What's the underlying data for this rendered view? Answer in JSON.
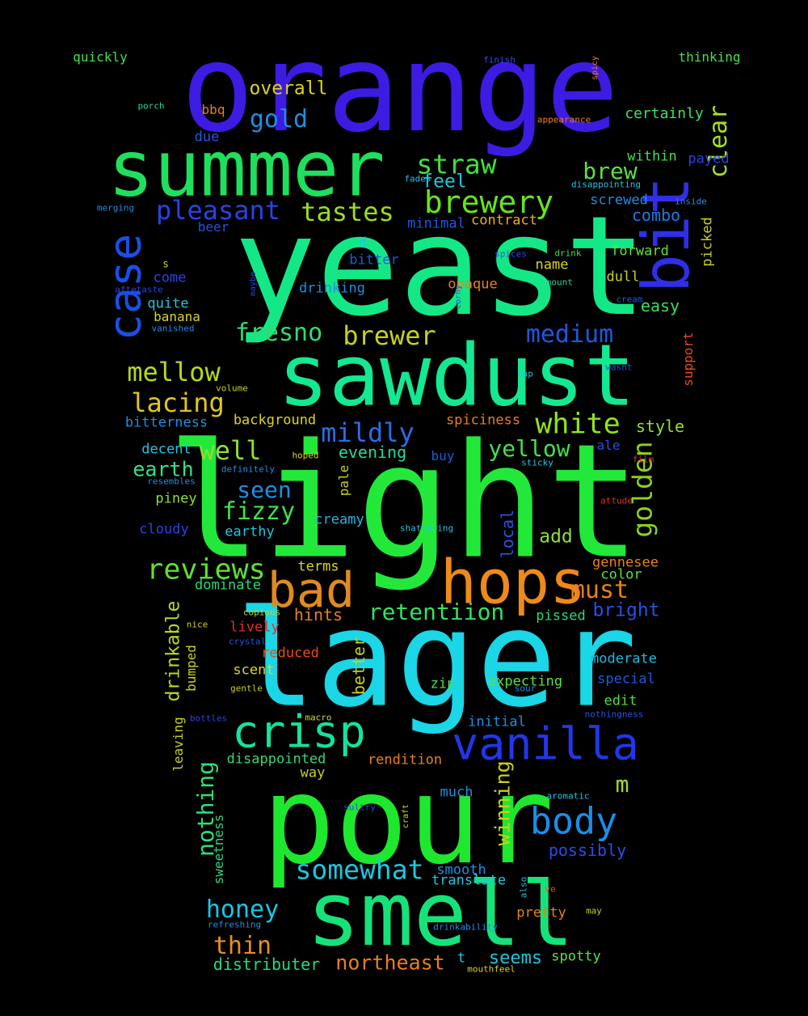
{
  "words": [
    {
      "text": "orange",
      "color": "#3d1be3"
    },
    {
      "text": "yeast",
      "color": "#14e886"
    },
    {
      "text": "light",
      "color": "#22e83a"
    },
    {
      "text": "lager",
      "color": "#1ad6e6"
    },
    {
      "text": "pour",
      "color": "#1ee82e"
    },
    {
      "text": "sawdust",
      "color": "#14e890"
    },
    {
      "text": "summer",
      "color": "#1ee05c"
    },
    {
      "text": "smell",
      "color": "#16e27a"
    },
    {
      "text": "hops",
      "color": "#ee8a1a"
    },
    {
      "text": "bit",
      "color": "#2f2ee8"
    },
    {
      "text": "vanilla",
      "color": "#2236ea"
    },
    {
      "text": "bad",
      "color": "#e08a22"
    },
    {
      "text": "crisp",
      "color": "#14e2a0"
    },
    {
      "text": "case",
      "color": "#1a4ee8"
    },
    {
      "text": "body",
      "color": "#1a8ee8"
    },
    {
      "text": "brewery",
      "color": "#66e41e"
    },
    {
      "text": "somewhat",
      "color": "#1ac8e0"
    },
    {
      "text": "reviews",
      "color": "#60e030"
    },
    {
      "text": "golden",
      "color": "#8ed01e"
    },
    {
      "text": "white",
      "color": "#90e41e"
    },
    {
      "text": "pleasant",
      "color": "#2a42e6"
    },
    {
      "text": "tastes",
      "color": "#9cdc20"
    },
    {
      "text": "straw",
      "color": "#40e040"
    },
    {
      "text": "mildly",
      "color": "#2a6ee4"
    },
    {
      "text": "fresno",
      "color": "#36d870"
    },
    {
      "text": "mellow",
      "color": "#b6d81e"
    },
    {
      "text": "brewer",
      "color": "#c8d01e"
    },
    {
      "text": "honey",
      "color": "#1ac4e8"
    },
    {
      "text": "thin",
      "color": "#e8901e"
    },
    {
      "text": "medium",
      "color": "#1e58e0"
    },
    {
      "text": "retentiion",
      "color": "#36e060"
    },
    {
      "text": "must",
      "color": "#e8801a"
    },
    {
      "text": "lacing",
      "color": "#e0c81e"
    },
    {
      "text": "nothing",
      "color": "#2ee07a"
    },
    {
      "text": "clear",
      "color": "#a6e020"
    },
    {
      "text": "winning",
      "color": "#c8d01e"
    },
    {
      "text": "fizzy",
      "color": "#44e048"
    },
    {
      "text": "seen",
      "color": "#1e8ee6"
    },
    {
      "text": "well",
      "color": "#8ee030"
    },
    {
      "text": "yellow",
      "color": "#44e04e"
    },
    {
      "text": "brew",
      "color": "#5ee040"
    },
    {
      "text": "gold",
      "color": "#1e8ee8"
    },
    {
      "text": "northeast",
      "color": "#e8801a"
    },
    {
      "text": "drinkable",
      "color": "#b6d81e"
    },
    {
      "text": "overall",
      "color": "#dcd41e"
    },
    {
      "text": "m",
      "color": "#a8dc20"
    },
    {
      "text": "earth",
      "color": "#36e08a"
    },
    {
      "text": "distributer",
      "color": "#26d87e"
    },
    {
      "text": "feel",
      "color": "#1ec6e0"
    },
    {
      "text": "combo",
      "color": "#1e7ae8"
    },
    {
      "text": "style",
      "color": "#8ee030"
    },
    {
      "text": "easy",
      "color": "#36e060"
    },
    {
      "text": "bright",
      "color": "#2a4ee8"
    },
    {
      "text": "evening",
      "color": "#26d8a0"
    },
    {
      "text": "seems",
      "color": "#1ec6e0"
    },
    {
      "text": "possibly",
      "color": "#2a4ee8"
    },
    {
      "text": "add",
      "color": "#90e030"
    },
    {
      "text": "local",
      "color": "#2a52e6"
    },
    {
      "text": "hints",
      "color": "#e8801a"
    },
    {
      "text": "better",
      "color": "#c8d01e"
    },
    {
      "text": "expecting",
      "color": "#60e040"
    },
    {
      "text": "special",
      "color": "#1e58e0"
    },
    {
      "text": "moderate",
      "color": "#1eb8e0"
    },
    {
      "text": "certainly",
      "color": "#40e060"
    },
    {
      "text": "thinking",
      "color": "#44e048"
    },
    {
      "text": "quickly",
      "color": "#44e048"
    },
    {
      "text": "spiciness",
      "color": "#e8801a"
    },
    {
      "text": "disappointed",
      "color": "#36d870"
    },
    {
      "text": "rendition",
      "color": "#e8801a"
    },
    {
      "text": "smooth",
      "color": "#1e8ee6"
    },
    {
      "text": "translate",
      "color": "#1ec6e0"
    },
    {
      "text": "pretty",
      "color": "#e8801a"
    },
    {
      "text": "spotty",
      "color": "#60e040"
    },
    {
      "text": "sweetness",
      "color": "#26d87e"
    },
    {
      "text": "leaving",
      "color": "#c8d01e"
    },
    {
      "text": "bumped",
      "color": "#c8d01e"
    },
    {
      "text": "background",
      "color": "#dcd41e"
    },
    {
      "text": "bitterness",
      "color": "#1e8ee6"
    },
    {
      "text": "decent",
      "color": "#1ec6e0"
    },
    {
      "text": "piney",
      "color": "#8ee030"
    },
    {
      "text": "cloudy",
      "color": "#2a42e6"
    },
    {
      "text": "earthy",
      "color": "#1ec6e0"
    },
    {
      "text": "creamy",
      "color": "#1eb8e0"
    },
    {
      "text": "terms",
      "color": "#dcd41e"
    },
    {
      "text": "dominate",
      "color": "#26d87e"
    },
    {
      "text": "lively",
      "color": "#e82a2a"
    },
    {
      "text": "reduced",
      "color": "#e84a1a"
    },
    {
      "text": "scent",
      "color": "#dcd41e"
    },
    {
      "text": "zip",
      "color": "#44e048"
    },
    {
      "text": "initial",
      "color": "#1e8ee6"
    },
    {
      "text": "edit",
      "color": "#44e048"
    },
    {
      "text": "color",
      "color": "#60e040"
    },
    {
      "text": "gennesee",
      "color": "#e8801a"
    },
    {
      "text": "pissed",
      "color": "#26d87e"
    },
    {
      "text": "way",
      "color": "#c8d01e"
    },
    {
      "text": "much",
      "color": "#1e8ee6"
    },
    {
      "text": "opaque",
      "color": "#e8801a"
    },
    {
      "text": "name",
      "color": "#dcd41e"
    },
    {
      "text": "dull",
      "color": "#c8d01e"
    },
    {
      "text": "forward",
      "color": "#60e040"
    },
    {
      "text": "picked",
      "color": "#c8d01e"
    },
    {
      "text": "contract",
      "color": "#e8b01e"
    },
    {
      "text": "minimal",
      "color": "#1e58e0"
    },
    {
      "text": "screwed",
      "color": "#1e8ee6"
    },
    {
      "text": "within",
      "color": "#44e048"
    },
    {
      "text": "payed",
      "color": "#2a42e6"
    },
    {
      "text": "bitter",
      "color": "#1e58e0"
    },
    {
      "text": "drinking",
      "color": "#1e8ee6"
    },
    {
      "text": "due",
      "color": "#1e58e0"
    },
    {
      "text": "bbq",
      "color": "#e8801a"
    },
    {
      "text": "beer",
      "color": "#1e58e0"
    },
    {
      "text": "come",
      "color": "#2a42e6"
    },
    {
      "text": "quite",
      "color": "#1ec6e0"
    },
    {
      "text": "banana",
      "color": "#dcd41e"
    },
    {
      "text": "s",
      "color": "#c8d01e"
    },
    {
      "text": "d",
      "color": "#1ec6e0"
    },
    {
      "text": "ale",
      "color": "#2a4ee8"
    },
    {
      "text": "buy",
      "color": "#1e58e0"
    },
    {
      "text": "pale",
      "color": "#c8d01e"
    },
    {
      "text": "support",
      "color": "#e84a1a"
    },
    {
      "text": "t",
      "color": "#1ec6e0"
    },
    {
      "text": "finish",
      "color": "#2a4ee8"
    },
    {
      "text": "spicy",
      "color": "#e8801a"
    },
    {
      "text": "porch",
      "color": "#26d8a0"
    },
    {
      "text": "appearance",
      "color": "#e8801a"
    },
    {
      "text": "fades",
      "color": "#1ec6e0"
    },
    {
      "text": "disappointing",
      "color": "#1ec6e0"
    },
    {
      "text": "inside",
      "color": "#1e8ee6"
    },
    {
      "text": "merging",
      "color": "#1e8ee6"
    },
    {
      "text": "spices",
      "color": "#2a4ee8"
    },
    {
      "text": "drink",
      "color": "#44e048"
    },
    {
      "text": "amount",
      "color": "#26d8a0"
    },
    {
      "text": "maybe",
      "color": "#2a42e6"
    },
    {
      "text": "aftetaste",
      "color": "#2a42e6"
    },
    {
      "text": "corny",
      "color": "#2a4ee8"
    },
    {
      "text": "cream",
      "color": "#1e58e0"
    },
    {
      "text": "vanished",
      "color": "#1e8ee6"
    },
    {
      "text": "tap",
      "color": "#1ec6e0"
    },
    {
      "text": "wasnt",
      "color": "#1e58e0"
    },
    {
      "text": "volume",
      "color": "#c8d01e"
    },
    {
      "text": "hoped",
      "color": "#dcd41e"
    },
    {
      "text": "definitely",
      "color": "#1e8ee6"
    },
    {
      "text": "resembles",
      "color": "#1e8ee6"
    },
    {
      "text": "sticky",
      "color": "#1ec6e0"
    },
    {
      "text": "film",
      "color": "#e82a2a"
    },
    {
      "text": "attude",
      "color": "#e82a2a"
    },
    {
      "text": "shattering",
      "color": "#1ec6e0"
    },
    {
      "text": "copious",
      "color": "#c8d01e"
    },
    {
      "text": "nice",
      "color": "#c8d01e"
    },
    {
      "text": "crystal",
      "color": "#1e58e0"
    },
    {
      "text": "gentle",
      "color": "#c8d01e"
    },
    {
      "text": "sour",
      "color": "#1e8ee6"
    },
    {
      "text": "bottles",
      "color": "#2a42e6"
    },
    {
      "text": "macro",
      "color": "#dcd41e"
    },
    {
      "text": "nothingness",
      "color": "#1e58e0"
    },
    {
      "text": "aromatic",
      "color": "#1ec6e0"
    },
    {
      "text": "sultry",
      "color": "#2a4ee8"
    },
    {
      "text": "craft",
      "color": "#dcd41e"
    },
    {
      "text": "also",
      "color": "#1ec6e0"
    },
    {
      "text": "ve",
      "color": "#e84a1a"
    },
    {
      "text": "may",
      "color": "#c8d01e"
    },
    {
      "text": "refreshing",
      "color": "#1e8ee6"
    },
    {
      "text": "drinkability",
      "color": "#1e8ee6"
    },
    {
      "text": "mouthfeel",
      "color": "#dcd41e"
    }
  ]
}
